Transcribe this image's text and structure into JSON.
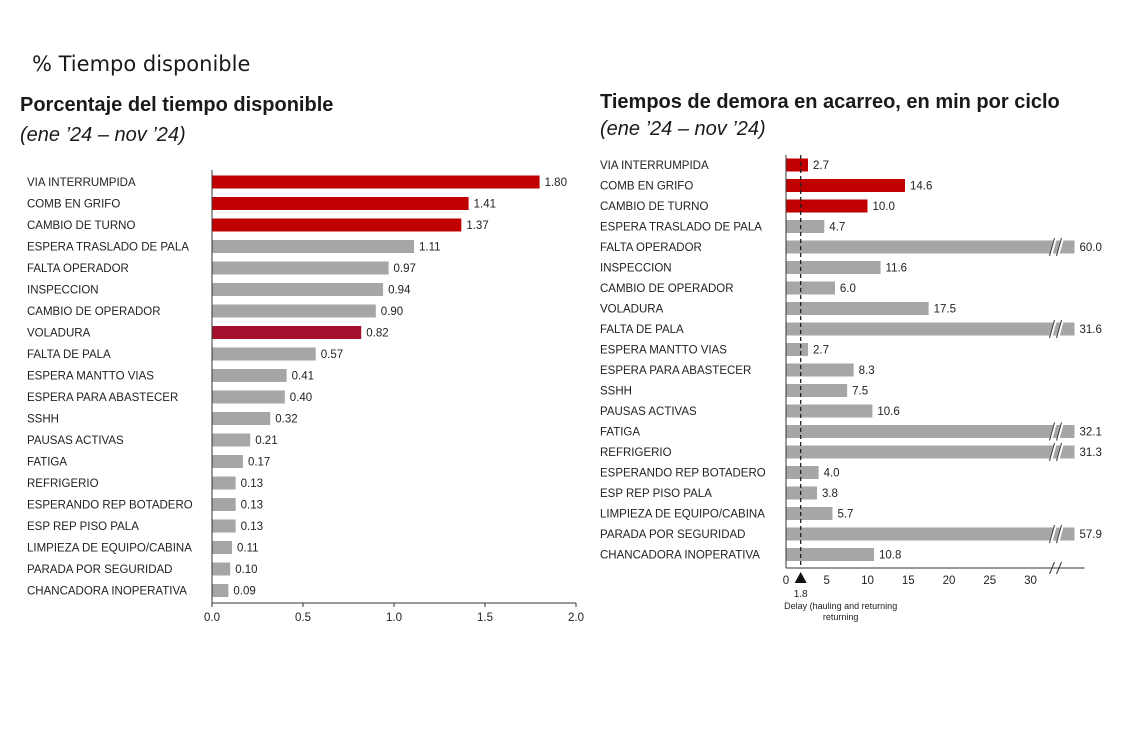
{
  "page": {
    "section_label": "% Tiempo disponible",
    "accent_red": "#c00000",
    "accent_dark_red": "#a3112e",
    "bar_gray": "#a6a6a6"
  },
  "chart_data": [
    {
      "type": "bar",
      "orientation": "horizontal",
      "title": "Porcentaje del tiempo disponible",
      "subtitle": "(ene ’24 – nov ’24)",
      "categories": [
        "VIA INTERRUMPIDA",
        "COMB EN GRIFO",
        "CAMBIO DE TURNO",
        "ESPERA TRASLADO DE PALA",
        "FALTA OPERADOR",
        "INSPECCION",
        "CAMBIO DE OPERADOR",
        "VOLADURA",
        "FALTA DE PALA",
        "ESPERA MANTTO VIAS",
        "ESPERA PARA ABASTECER",
        "SSHH",
        "PAUSAS ACTIVAS",
        "FATIGA",
        "REFRIGERIO",
        "ESPERANDO REP BOTADERO",
        "ESP REP PISO PALA",
        "LIMPIEZA DE EQUIPO/CABINA",
        "PARADA POR SEGURIDAD",
        "CHANCADORA INOPERATIVA"
      ],
      "values": [
        1.8,
        1.41,
        1.37,
        1.11,
        0.97,
        0.94,
        0.9,
        0.82,
        0.57,
        0.41,
        0.4,
        0.32,
        0.21,
        0.17,
        0.13,
        0.13,
        0.13,
        0.11,
        0.1,
        0.09
      ],
      "value_labels": [
        "1.80",
        "1.41",
        "1.37",
        "1.11",
        "0.97",
        "0.94",
        "0.90",
        "0.82",
        "0.57",
        "0.41",
        "0.40",
        "0.32",
        "0.21",
        "0.17",
        "0.13",
        "0.13",
        "0.13",
        "0.11",
        "0.10",
        "0.09"
      ],
      "colors": [
        "red",
        "red",
        "red",
        "gray",
        "gray",
        "gray",
        "gray",
        "darkred",
        "gray",
        "gray",
        "gray",
        "gray",
        "gray",
        "gray",
        "gray",
        "gray",
        "gray",
        "gray",
        "gray",
        "gray"
      ],
      "xlim": [
        0,
        2.0
      ],
      "xticks": [
        "0.0",
        "0.5",
        "1.0",
        "1.5",
        "2.0"
      ],
      "grid": false
    },
    {
      "type": "bar",
      "orientation": "horizontal",
      "title": "Tiempos de demora en acarreo, en min por ciclo",
      "subtitle": "(ene ’24 – nov ’24)",
      "categories": [
        "VIA INTERRUMPIDA",
        "COMB EN GRIFO",
        "CAMBIO DE TURNO",
        "ESPERA TRASLADO DE PALA",
        "FALTA OPERADOR",
        "INSPECCION",
        "CAMBIO DE OPERADOR",
        "VOLADURA",
        "FALTA DE PALA",
        "ESPERA MANTTO VIAS",
        "ESPERA PARA ABASTECER",
        "SSHH",
        "PAUSAS ACTIVAS",
        "FATIGA",
        "REFRIGERIO",
        "ESPERANDO REP BOTADERO",
        "ESP REP PISO PALA",
        "LIMPIEZA DE EQUIPO/CABINA",
        "PARADA POR SEGURIDAD",
        "CHANCADORA INOPERATIVA"
      ],
      "values": [
        2.7,
        14.6,
        10.0,
        4.7,
        60.0,
        11.6,
        6.0,
        17.5,
        31.6,
        2.7,
        8.3,
        7.5,
        10.6,
        32.1,
        31.3,
        4.0,
        3.8,
        5.7,
        57.9,
        10.8
      ],
      "value_labels": [
        "2.7",
        "14.6",
        "10.0",
        "4.7",
        "60.0",
        "11.6",
        "6.0",
        "17.5",
        "31.6",
        "2.7",
        "8.3",
        "7.5",
        "10.6",
        "32.1",
        "31.3",
        "4.0",
        "3.8",
        "5.7",
        "57.9",
        "10.8"
      ],
      "colors": [
        "red",
        "red",
        "red",
        "gray",
        "gray",
        "gray",
        "gray",
        "gray",
        "gray",
        "gray",
        "gray",
        "gray",
        "gray",
        "gray",
        "gray",
        "gray",
        "gray",
        "gray",
        "gray",
        "gray"
      ],
      "axis_break_after": 30,
      "broken_bars": [
        "FALTA OPERADOR",
        "PARADA POR SEGURIDAD"
      ],
      "xlim": [
        0,
        30
      ],
      "xticks": [
        "0",
        "5",
        "10",
        "15",
        "20",
        "25",
        "30"
      ],
      "reference_line": {
        "value": 1.8,
        "label": "1.8",
        "caption": "Delay (hauling and returning"
      },
      "grid": false
    }
  ]
}
